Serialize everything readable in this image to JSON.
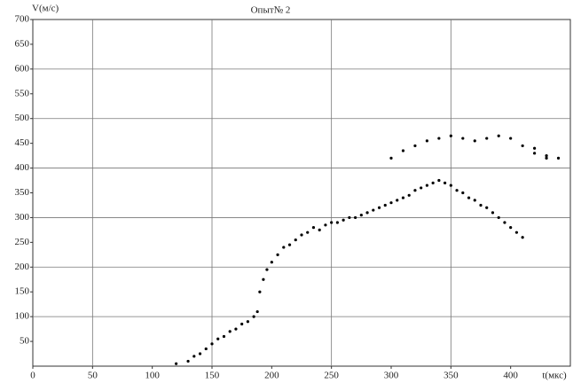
{
  "chart_data": {
    "type": "scatter",
    "title": "Опыт№ 2",
    "y_label": "V(м/с)",
    "x_label": "t(мкс)",
    "xlim": [
      0,
      450
    ],
    "ylim": [
      0,
      700
    ],
    "xticks": [
      0,
      50,
      100,
      150,
      200,
      250,
      300,
      350,
      400
    ],
    "yticks": [
      50,
      100,
      150,
      200,
      250,
      300,
      350,
      400,
      450,
      500,
      550,
      600,
      650,
      700
    ],
    "xgrid": [
      50,
      150,
      250,
      350
    ],
    "ygrid": [
      100,
      200,
      300,
      400,
      500,
      600
    ],
    "color": "#000000",
    "x": [
      120,
      130,
      135,
      140,
      145,
      150,
      155,
      160,
      165,
      170,
      175,
      180,
      185,
      188,
      190,
      193,
      196,
      200,
      205,
      210,
      215,
      220,
      225,
      230,
      235,
      240,
      245,
      250,
      255,
      260,
      265,
      270,
      275,
      280,
      285,
      290,
      295,
      300,
      305,
      310,
      315,
      320,
      325,
      330,
      335,
      340,
      345,
      350,
      355,
      360,
      365,
      370,
      375,
      380,
      385,
      390,
      395,
      400,
      405,
      410,
      300,
      310,
      320,
      330,
      340,
      350,
      360,
      370,
      380,
      390,
      400,
      410,
      420,
      430,
      420,
      430,
      440
    ],
    "values": [
      5,
      10,
      20,
      25,
      35,
      45,
      55,
      60,
      70,
      75,
      85,
      90,
      100,
      110,
      150,
      175,
      195,
      210,
      225,
      240,
      245,
      255,
      265,
      270,
      280,
      275,
      285,
      290,
      290,
      295,
      300,
      300,
      305,
      310,
      315,
      320,
      325,
      330,
      335,
      340,
      345,
      355,
      360,
      365,
      370,
      375,
      370,
      365,
      355,
      350,
      340,
      335,
      325,
      320,
      310,
      300,
      290,
      280,
      270,
      260,
      420,
      435,
      445,
      455,
      460,
      465,
      460,
      455,
      460,
      465,
      460,
      445,
      430,
      420,
      440,
      425,
      420
    ]
  }
}
